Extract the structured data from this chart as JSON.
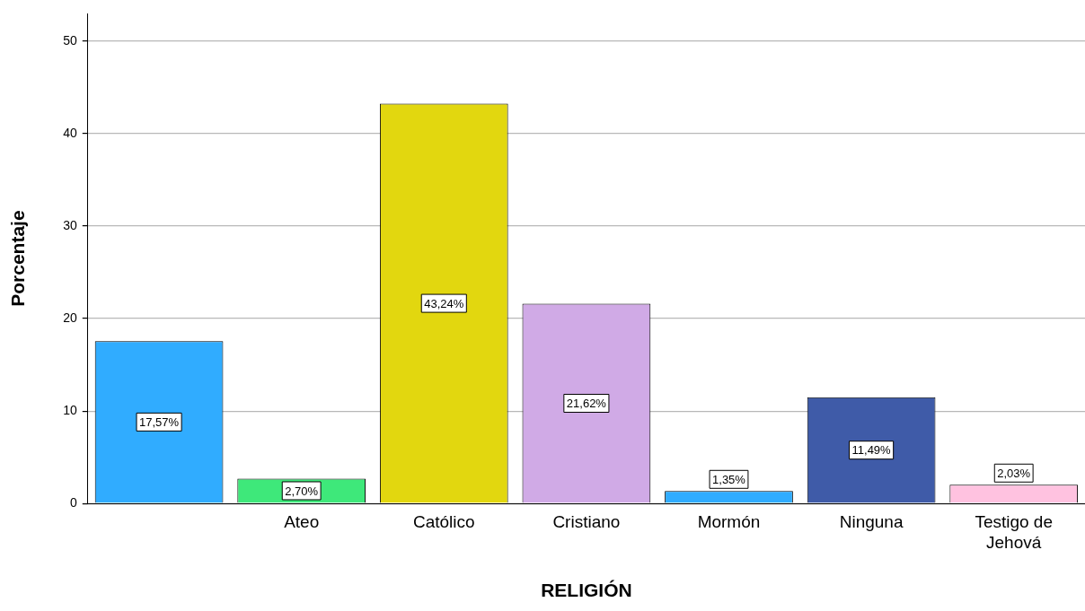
{
  "chart_data": {
    "type": "bar",
    "xlabel": "RELIGIÓN",
    "ylabel": "Porcentaje",
    "categories": [
      null,
      "Ateo",
      "Católico",
      "Cristiano",
      "Mormón",
      "Ninguna",
      "Testigo de Jehová"
    ],
    "values": [
      17.57,
      2.7,
      43.24,
      21.62,
      1.35,
      11.49,
      2.03
    ],
    "colors": [
      "#30acff",
      "#3ee87a",
      "#e2d70f",
      "#d0aae6",
      "#30acff",
      "#3f5ba8",
      "#ffc2e0"
    ],
    "value_labels": [
      "17,57%",
      "2,70%",
      "43,24%",
      "21,62%",
      "1,35%",
      "11,49%",
      "2,03%"
    ],
    "ylim": [
      0,
      53
    ],
    "yticks": [
      0,
      10,
      20,
      30,
      40,
      50
    ],
    "grid": "y",
    "legend": false
  }
}
